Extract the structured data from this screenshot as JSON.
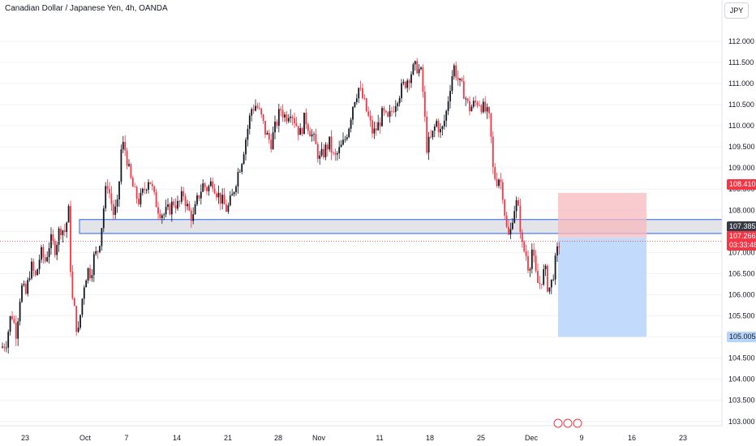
{
  "header": {
    "title": "Canadian Dollar / Japanese Yen, 4h, OANDA",
    "currency_button": "JPY"
  },
  "chart_data": {
    "type": "candlestick",
    "ylim": [
      102.9,
      112.4
    ],
    "y_ticks": [
      "103.000",
      "103.500",
      "104.000",
      "104.500",
      "105.000",
      "105.500",
      "106.000",
      "106.500",
      "107.000",
      "107.500",
      "108.000",
      "108.500",
      "109.000",
      "109.500",
      "110.000",
      "110.500",
      "111.000",
      "111.500",
      "112.000"
    ],
    "x_ticks": [
      "23",
      "Oct",
      "7",
      "14",
      "21",
      "28",
      "Nov",
      "11",
      "18",
      "25",
      "Dec",
      "9",
      "16",
      "23"
    ],
    "levels": {
      "stop": "108.410",
      "price_level": "107.385",
      "current_price": "107.266",
      "countdown": "03:33:48",
      "target": "105.005"
    },
    "zone": {
      "top": 107.78,
      "bottom": 107.45
    },
    "position": {
      "entry": 107.35,
      "stop": 108.41,
      "target": 105.005
    },
    "colors": {
      "up": "#131722",
      "down": "#f23645",
      "stop_fill": "#f7b9bd",
      "target_fill": "#b7d5fb",
      "zone_border": "#2962ff"
    },
    "price_path": [
      [
        0,
        104.7
      ],
      [
        8,
        104.9
      ],
      [
        14,
        105.6
      ],
      [
        20,
        105.1
      ],
      [
        26,
        106.2
      ],
      [
        32,
        106.0
      ],
      [
        38,
        106.7
      ],
      [
        44,
        106.4
      ],
      [
        50,
        107.0
      ],
      [
        56,
        106.8
      ],
      [
        62,
        107.3
      ],
      [
        68,
        107.1
      ],
      [
        74,
        107.6
      ],
      [
        80,
        107.5
      ],
      [
        85,
        108.0
      ],
      [
        88,
        106.0
      ],
      [
        92,
        105.6
      ],
      [
        96,
        105.0
      ],
      [
        100,
        105.7
      ],
      [
        104,
        106.3
      ],
      [
        108,
        106.6
      ],
      [
        112,
        106.5
      ],
      [
        116,
        106.9
      ],
      [
        120,
        107.0
      ],
      [
        124,
        107.4
      ],
      [
        128,
        108.1
      ],
      [
        132,
        108.7
      ],
      [
        136,
        108.3
      ],
      [
        140,
        107.9
      ],
      [
        145,
        108.1
      ],
      [
        150,
        109.6
      ],
      [
        155,
        109.4
      ],
      [
        160,
        108.8
      ],
      [
        166,
        108.4
      ],
      [
        172,
        108.2
      ],
      [
        178,
        108.5
      ],
      [
        184,
        108.8
      ],
      [
        190,
        108.3
      ],
      [
        196,
        108.0
      ],
      [
        202,
        107.9
      ],
      [
        208,
        108.0
      ],
      [
        214,
        108.2
      ],
      [
        220,
        108.1
      ],
      [
        226,
        108.4
      ],
      [
        232,
        108.0
      ],
      [
        238,
        107.8
      ],
      [
        244,
        108.3
      ],
      [
        250,
        108.6
      ],
      [
        256,
        108.5
      ],
      [
        262,
        108.7
      ],
      [
        268,
        108.4
      ],
      [
        274,
        108.2
      ],
      [
        280,
        108.0
      ],
      [
        286,
        108.3
      ],
      [
        292,
        108.8
      ],
      [
        298,
        109.2
      ],
      [
        304,
        109.8
      ],
      [
        310,
        110.4
      ],
      [
        316,
        110.5
      ],
      [
        322,
        110.2
      ],
      [
        328,
        109.8
      ],
      [
        334,
        109.6
      ],
      [
        340,
        110.0
      ],
      [
        346,
        110.4
      ],
      [
        352,
        110.2
      ],
      [
        358,
        110.4
      ],
      [
        364,
        110.1
      ],
      [
        370,
        109.8
      ],
      [
        376,
        110.2
      ],
      [
        382,
        109.9
      ],
      [
        388,
        109.6
      ],
      [
        394,
        109.2
      ],
      [
        400,
        109.4
      ],
      [
        406,
        109.6
      ],
      [
        412,
        109.2
      ],
      [
        418,
        109.4
      ],
      [
        424,
        109.6
      ],
      [
        430,
        110.0
      ],
      [
        436,
        110.6
      ],
      [
        442,
        110.9
      ],
      [
        448,
        110.6
      ],
      [
        454,
        110.2
      ],
      [
        460,
        109.8
      ],
      [
        466,
        110.0
      ],
      [
        472,
        110.3
      ],
      [
        478,
        110.1
      ],
      [
        484,
        110.4
      ],
      [
        490,
        110.7
      ],
      [
        496,
        110.9
      ],
      [
        502,
        111.1
      ],
      [
        508,
        111.3
      ],
      [
        514,
        111.4
      ],
      [
        520,
        111.2
      ],
      [
        526,
        109.5
      ],
      [
        532,
        109.7
      ],
      [
        538,
        110.1
      ],
      [
        544,
        109.8
      ],
      [
        550,
        110.3
      ],
      [
        556,
        111.1
      ],
      [
        560,
        111.4
      ],
      [
        566,
        111.0
      ],
      [
        572,
        110.8
      ],
      [
        578,
        110.4
      ],
      [
        584,
        110.5
      ],
      [
        590,
        110.6
      ],
      [
        596,
        110.4
      ],
      [
        600,
        110.3
      ],
      [
        604,
        110.1
      ],
      [
        608,
        108.9
      ],
      [
        612,
        108.7
      ],
      [
        616,
        108.8
      ],
      [
        620,
        108.4
      ],
      [
        624,
        107.6
      ],
      [
        628,
        107.3
      ],
      [
        632,
        107.9
      ],
      [
        636,
        108.2
      ],
      [
        640,
        107.9
      ],
      [
        644,
        107.1
      ],
      [
        648,
        107.0
      ],
      [
        652,
        106.6
      ],
      [
        656,
        107.1
      ],
      [
        660,
        106.5
      ],
      [
        664,
        106.2
      ],
      [
        668,
        106.4
      ],
      [
        672,
        106.6
      ],
      [
        676,
        106.1
      ],
      [
        680,
        106.3
      ],
      [
        684,
        106.7
      ],
      [
        688,
        107.1
      ],
      [
        690,
        107.27
      ]
    ]
  }
}
